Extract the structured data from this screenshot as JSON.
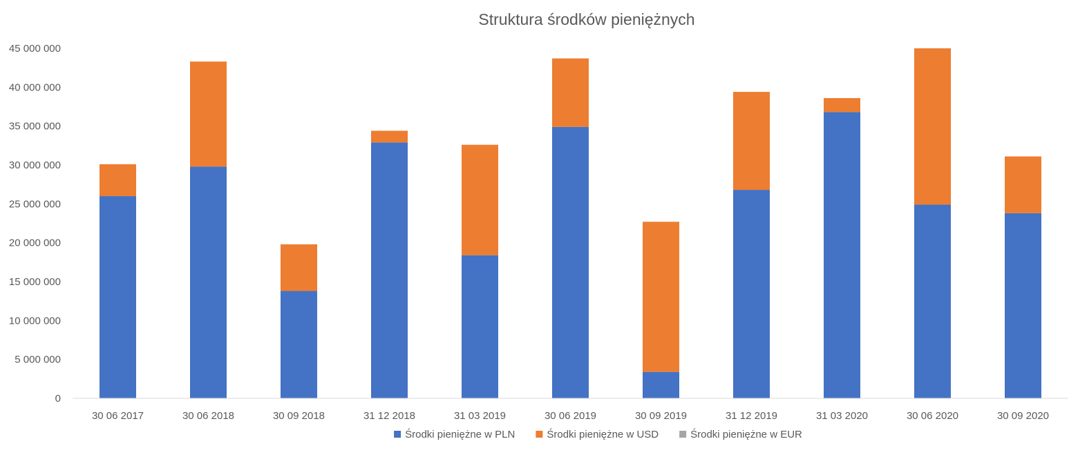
{
  "chart_data": {
    "type": "bar",
    "stacked": true,
    "title": "Struktura środków pieniężnych",
    "categories": [
      "30 06 2017",
      "30 06 2018",
      "30 09 2018",
      "31 12 2018",
      "31 03 2019",
      "30 06 2019",
      "30 09 2019",
      "31 12 2019",
      "31 03 2020",
      "30 06 2020",
      "30 09 2020"
    ],
    "series": [
      {
        "name": "Środki pieniężne w PLN",
        "color": "#4472C4",
        "values": [
          26000000,
          29800000,
          13800000,
          32900000,
          18400000,
          34900000,
          3400000,
          26800000,
          36800000,
          24900000,
          23800000
        ]
      },
      {
        "name": "Środki pieniężne w USD",
        "color": "#ED7D31",
        "values": [
          4100000,
          13500000,
          6000000,
          1500000,
          14200000,
          8800000,
          19300000,
          12600000,
          1800000,
          20100000,
          7300000
        ]
      },
      {
        "name": "Środki pieniężne w EUR",
        "color": "#A5A5A5",
        "values": [
          0,
          0,
          0,
          0,
          0,
          0,
          0,
          0,
          0,
          0,
          0
        ]
      }
    ],
    "yticks": [
      "0",
      "5 000 000",
      "10 000 000",
      "15 000 000",
      "20 000 000",
      "25 000 000",
      "30 000 000",
      "35 000 000",
      "40 000 000",
      "45 000 000"
    ],
    "ylim": [
      0,
      45000000
    ],
    "ystep": 5000000,
    "grid": false,
    "legend": "bottom"
  }
}
